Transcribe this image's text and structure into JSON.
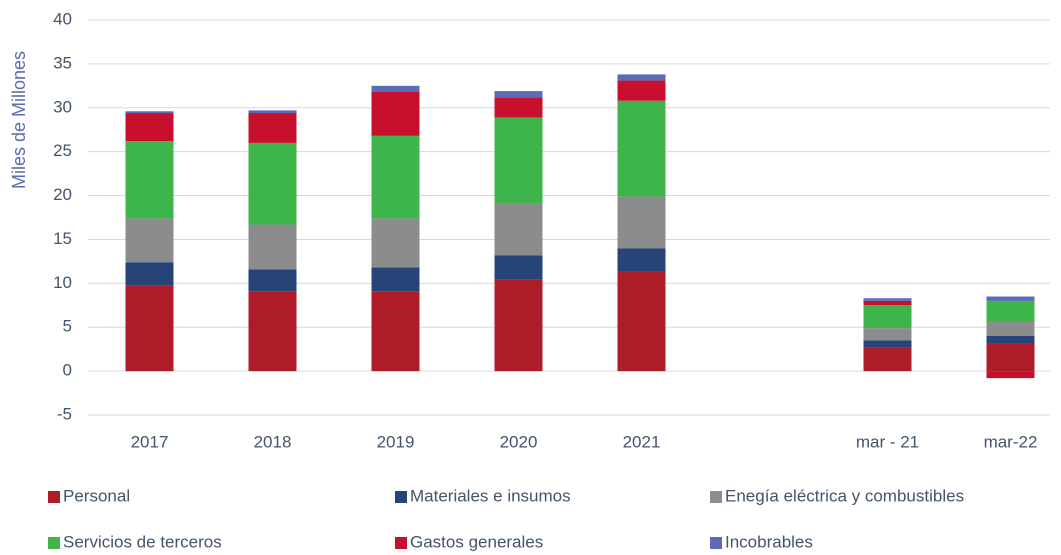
{
  "chart_data": {
    "type": "stacked_bar",
    "y_axis_label": "Miles de Millones",
    "categories": [
      "2017",
      "2018",
      "2019",
      "2020",
      "2021",
      null,
      "mar - 21",
      "mar-22"
    ],
    "series": [
      {
        "name": "Personal",
        "color": "#ae1c28",
        "values": [
          9.8,
          9.1,
          9.1,
          10.4,
          11.3,
          null,
          2.7,
          3.2
        ]
      },
      {
        "name": "Materiales e insumos",
        "color": "#264478",
        "values": [
          2.6,
          2.5,
          2.7,
          2.8,
          2.7,
          null,
          0.8,
          0.8
        ]
      },
      {
        "name": "Enegía eléctrica y combustibles",
        "color": "#8c8c8c",
        "values": [
          5.0,
          5.1,
          5.6,
          5.9,
          5.9,
          null,
          1.4,
          1.6
        ]
      },
      {
        "name": "Servicios de terceros",
        "color": "#3db54a",
        "values": [
          8.8,
          9.3,
          9.4,
          9.8,
          10.9,
          null,
          2.6,
          2.4
        ]
      },
      {
        "name": "Gastos generales",
        "color": "#c8102e",
        "values": [
          3.2,
          3.4,
          5.0,
          2.3,
          2.3,
          null,
          0.5,
          -0.8
        ]
      },
      {
        "name": "Incobrables",
        "color": "#5b6bb5",
        "values": [
          0.2,
          0.3,
          0.7,
          0.7,
          0.7,
          null,
          0.3,
          0.5
        ]
      }
    ],
    "ylim": [
      -5,
      40
    ],
    "yticks": [
      -5,
      0,
      5,
      10,
      15,
      20,
      25,
      30,
      35,
      40
    ],
    "grid": true,
    "legend": "bottom"
  }
}
